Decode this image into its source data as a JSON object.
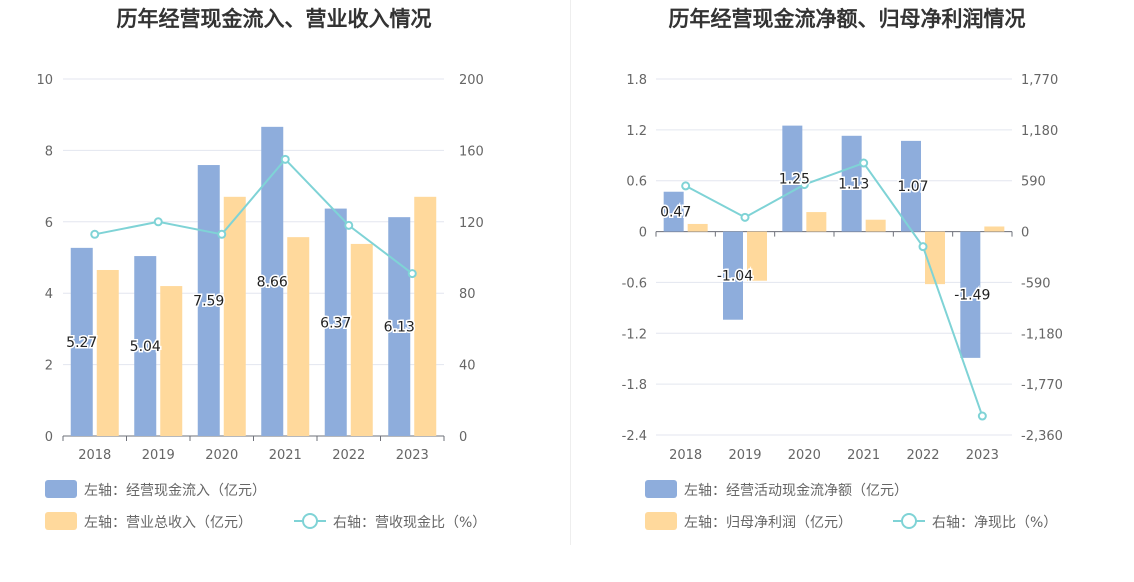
{
  "chart_data": [
    {
      "type": "bar",
      "title": "历年经营现金流入、营业收入情况",
      "categories": [
        "2018",
        "2019",
        "2020",
        "2021",
        "2022",
        "2023"
      ],
      "y_left": {
        "ticks": [
          "0",
          "2",
          "4",
          "6",
          "8",
          "10"
        ],
        "range": [
          0,
          10
        ]
      },
      "y_right": {
        "ticks": [
          "0",
          "40",
          "80",
          "120",
          "160",
          "200"
        ],
        "range": [
          0,
          200
        ]
      },
      "series": [
        {
          "name": "左轴：经营现金流入（亿元）",
          "axis": "left",
          "type": "bar",
          "color": "#8eaddc",
          "values": [
            5.27,
            5.04,
            7.59,
            8.66,
            6.37,
            6.13
          ],
          "labels": [
            "5.27",
            "5.04",
            "7.59",
            "8.66",
            "6.37",
            "6.13"
          ]
        },
        {
          "name": "左轴：营业总收入（亿元）",
          "axis": "left",
          "type": "bar",
          "color": "#ffd99c",
          "values": [
            4.65,
            4.2,
            6.7,
            5.57,
            5.38,
            6.7
          ]
        },
        {
          "name": "右轴：营收现金比（%）",
          "axis": "right",
          "type": "line",
          "color": "#7fd3d6",
          "values": [
            113,
            120,
            113,
            155,
            118,
            91
          ]
        }
      ],
      "grid": true,
      "legend_position": "bottom"
    },
    {
      "type": "bar",
      "title": "历年经营现金流净额、归母净利润情况",
      "categories": [
        "2018",
        "2019",
        "2020",
        "2021",
        "2022",
        "2023"
      ],
      "y_left": {
        "ticks": [
          "-2.4",
          "-1.8",
          "-1.2",
          "-0.6",
          "0",
          "0.6",
          "1.2",
          "1.8"
        ],
        "range": [
          -2.4,
          1.8
        ]
      },
      "y_right": {
        "ticks": [
          "-2,360",
          "-1,770",
          "-1,180",
          "-590",
          "0",
          "590",
          "1,180",
          "1,770"
        ],
        "range": [
          -2360,
          1770
        ]
      },
      "series": [
        {
          "name": "左轴：经营活动现金流净额（亿元）",
          "axis": "left",
          "type": "bar",
          "color": "#8eaddc",
          "values": [
            0.47,
            -1.04,
            1.25,
            1.13,
            1.07,
            -1.49
          ],
          "labels": [
            "0.47",
            "-1.04",
            "1.25",
            "1.13",
            "1.07",
            "-1.49"
          ]
        },
        {
          "name": "左轴：归母净利润（亿元）",
          "axis": "left",
          "type": "bar",
          "color": "#ffd99c",
          "values": [
            0.09,
            -0.58,
            0.23,
            0.14,
            -0.62,
            0.06
          ]
        },
        {
          "name": "右轴：净现比（%）",
          "axis": "right",
          "type": "line",
          "color": "#7fd3d6",
          "values": [
            530,
            165,
            545,
            795,
            -175,
            -2140
          ]
        }
      ],
      "grid": true,
      "legend_position": "bottom"
    }
  ]
}
